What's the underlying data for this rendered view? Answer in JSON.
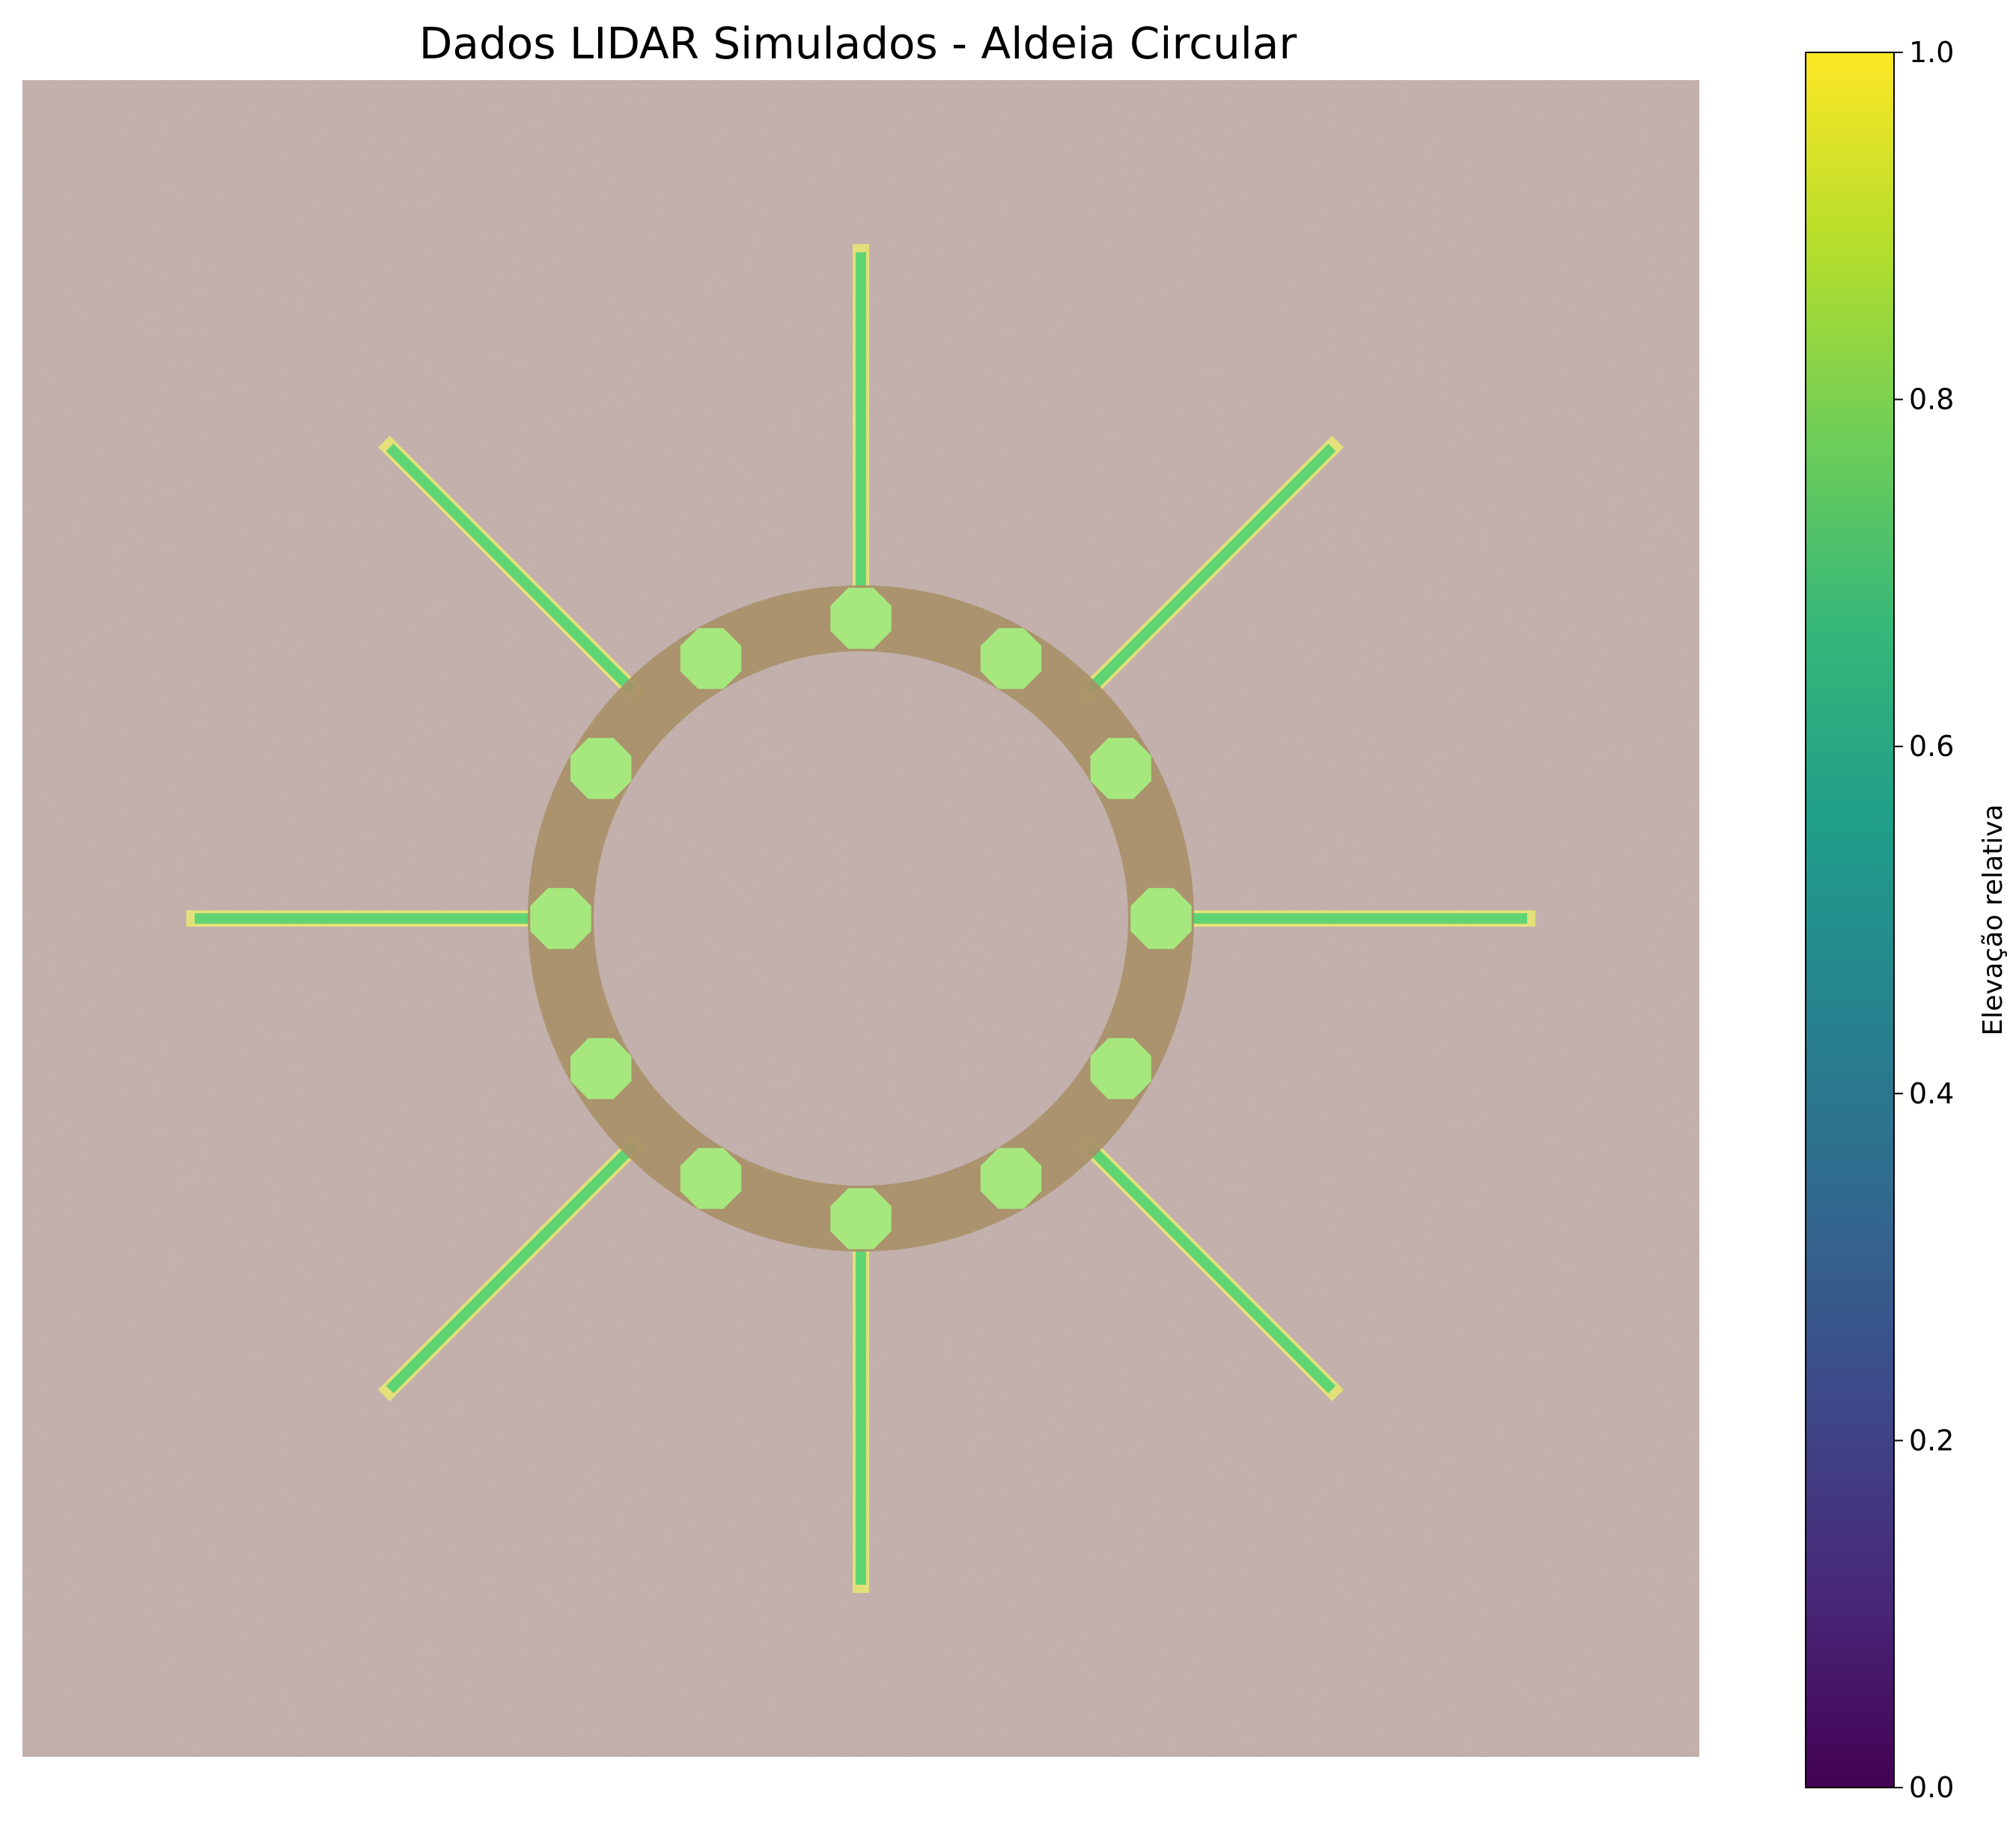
{
  "chart_data": {
    "type": "heatmap",
    "title": "Dados LIDAR Simulados - Aldeia Circular",
    "axes_visible": false,
    "colormap": "viridis",
    "colorbar": {
      "label": "Elevação relativa",
      "range": [
        0.0,
        1.0
      ],
      "ticks": [
        0.0,
        0.2,
        0.4,
        0.6,
        0.8,
        1.0
      ],
      "tick_labels": [
        "0.0",
        "0.2",
        "0.4",
        "0.6",
        "0.8",
        "1.0"
      ],
      "colors": [
        "#440154",
        "#482878",
        "#3e4989",
        "#31688e",
        "#26828e",
        "#1f9e89",
        "#35b779",
        "#6ece58",
        "#b5de2b",
        "#fde725"
      ]
    },
    "features": {
      "ring": "circular earthwork around the village plaza",
      "houses": 12,
      "radial_paths": 8
    }
  },
  "style": {
    "terrain_color": "#c5b2ae",
    "terrain_dark": "#8e7670",
    "ring_color": "#a89068",
    "house_color": "#a6e87e",
    "path_color": "#5fd472"
  }
}
